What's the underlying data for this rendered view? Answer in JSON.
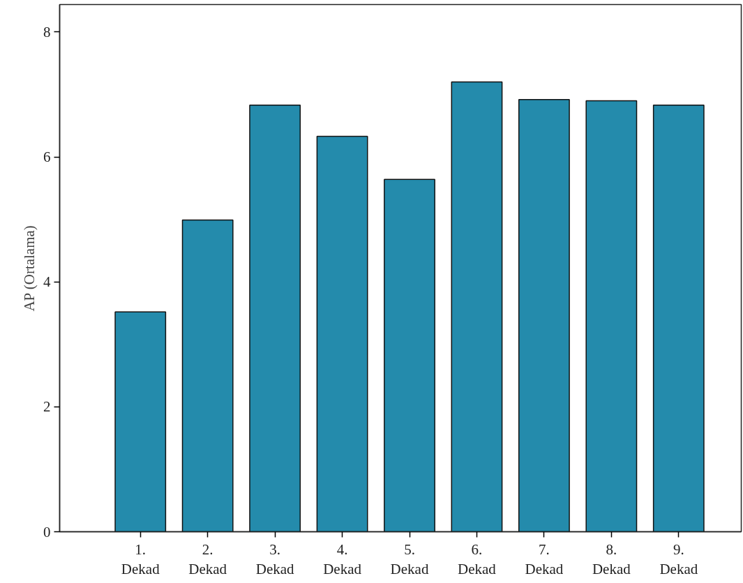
{
  "chart_data": {
    "type": "bar",
    "ylabel": "AP (Ortalama)",
    "categories": [
      "1. Dekad",
      "2. Dekad",
      "3. Dekad",
      "4. Dekad",
      "5. Dekad",
      "6. Dekad",
      "7. Dekad",
      "8. Dekad",
      "9. Dekad"
    ],
    "values": [
      3.52,
      4.99,
      6.83,
      6.33,
      5.64,
      7.2,
      6.92,
      6.9,
      6.83
    ],
    "color": "#248bac",
    "ylim": [
      0,
      8.44
    ],
    "yticks": [
      0,
      2,
      4,
      6,
      8
    ],
    "grid": false
  }
}
